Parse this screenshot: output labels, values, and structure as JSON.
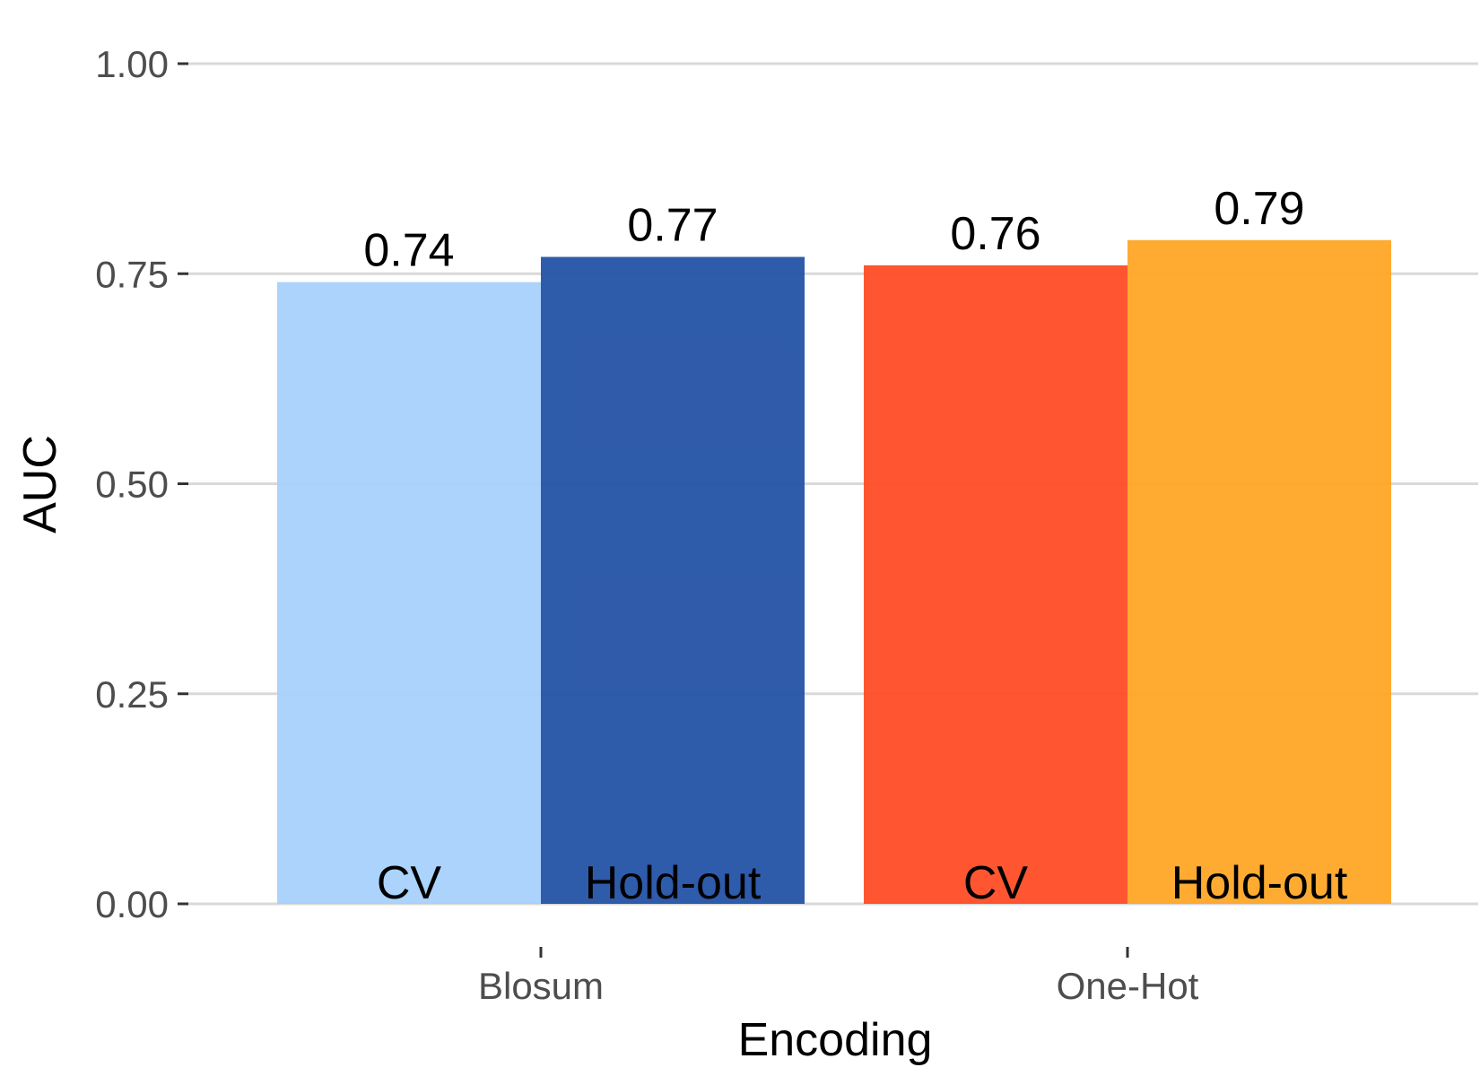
{
  "chart_data": {
    "type": "bar",
    "title": "",
    "xlabel": "Encoding",
    "ylabel": "AUC",
    "categories": [
      "Blosum",
      "One-Hot"
    ],
    "ylim": [
      0,
      1
    ],
    "yticks": [
      "0.00",
      "0.25",
      "0.50",
      "0.75",
      "1.00"
    ],
    "grid": true,
    "legend": "none",
    "bars": [
      {
        "category": "Blosum",
        "label": "CV",
        "value": 0.74,
        "value_label": "0.74",
        "color": "#a7d1fb"
      },
      {
        "category": "Blosum",
        "label": "Hold-out",
        "value": 0.77,
        "value_label": "0.77",
        "color": "#2452a6"
      },
      {
        "category": "One-Hot",
        "label": "CV",
        "value": 0.76,
        "value_label": "0.76",
        "color": "#ff4d26"
      },
      {
        "category": "One-Hot",
        "label": "Hold-out",
        "value": 0.79,
        "value_label": "0.79",
        "color": "#ffa626"
      }
    ]
  }
}
